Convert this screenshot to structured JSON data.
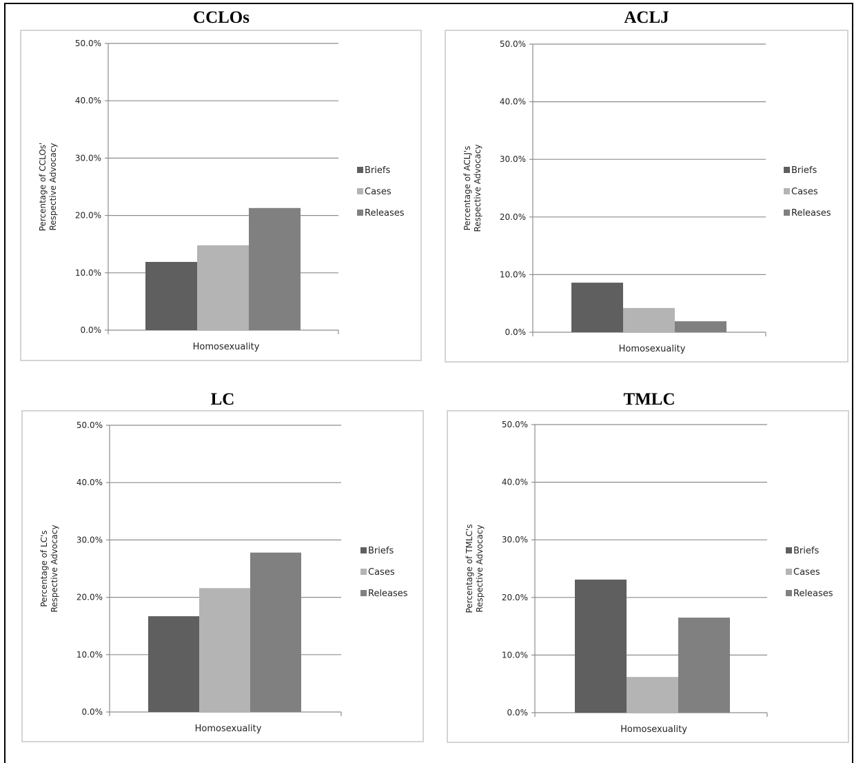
{
  "colors": {
    "briefs": "#5f5f5f",
    "cases": "#b4b4b4",
    "releases": "#808080",
    "grid": "#8c8c8c"
  },
  "panels": [
    {
      "title": "CCLOs",
      "ylabel_line1": "Percentage of CCLOs'",
      "ylabel_line2": "Respective Advocacy"
    },
    {
      "title": "ACLJ",
      "ylabel_line1": "Percentage of ACLJ's",
      "ylabel_line2": "Respective Advocacy"
    },
    {
      "title": "LC",
      "ylabel_line1": "Percentage of LC's",
      "ylabel_line2": "Respective Advocacy"
    },
    {
      "title": "TMLC",
      "ylabel_line1": "Percentage of TMLC's",
      "ylabel_line2": "Respective Advocacy"
    }
  ],
  "chart_data": [
    {
      "type": "bar",
      "title": "CCLOs",
      "categories": [
        "Homosexuality"
      ],
      "series": [
        {
          "name": "Briefs",
          "values": [
            11.9
          ]
        },
        {
          "name": "Cases",
          "values": [
            14.8
          ]
        },
        {
          "name": "Releases",
          "values": [
            21.3
          ]
        }
      ],
      "ylabel": "Percentage of CCLOs' Respective Advocacy",
      "ylim": [
        0,
        50
      ],
      "yticks": [
        "0.0%",
        "10.0%",
        "20.0%",
        "30.0%",
        "40.0%",
        "50.0%"
      ],
      "grid": true,
      "legend": "right"
    },
    {
      "type": "bar",
      "title": "ACLJ",
      "categories": [
        "Homosexuality"
      ],
      "series": [
        {
          "name": "Briefs",
          "values": [
            8.6
          ]
        },
        {
          "name": "Cases",
          "values": [
            4.2
          ]
        },
        {
          "name": "Releases",
          "values": [
            1.9
          ]
        }
      ],
      "ylabel": "Percentage of ACLJ's Respective Advocacy",
      "ylim": [
        0,
        50
      ],
      "yticks": [
        "0.0%",
        "10.0%",
        "20.0%",
        "30.0%",
        "40.0%",
        "50.0%"
      ],
      "grid": true,
      "legend": "right"
    },
    {
      "type": "bar",
      "title": "LC",
      "categories": [
        "Homosexuality"
      ],
      "series": [
        {
          "name": "Briefs",
          "values": [
            16.7
          ]
        },
        {
          "name": "Cases",
          "values": [
            21.6
          ]
        },
        {
          "name": "Releases",
          "values": [
            27.8
          ]
        }
      ],
      "ylabel": "Percentage of LC's Respective Advocacy",
      "ylim": [
        0,
        50
      ],
      "yticks": [
        "0.0%",
        "10.0%",
        "20.0%",
        "30.0%",
        "40.0%",
        "50.0%"
      ],
      "grid": true,
      "legend": "right"
    },
    {
      "type": "bar",
      "title": "TMLC",
      "categories": [
        "Homosexuality"
      ],
      "series": [
        {
          "name": "Briefs",
          "values": [
            23.1
          ]
        },
        {
          "name": "Cases",
          "values": [
            6.2
          ]
        },
        {
          "name": "Releases",
          "values": [
            16.5
          ]
        }
      ],
      "ylabel": "Percentage of TMLC's Respective Advocacy",
      "ylim": [
        0,
        50
      ],
      "yticks": [
        "0.0%",
        "10.0%",
        "20.0%",
        "30.0%",
        "40.0%",
        "50.0%"
      ],
      "grid": true,
      "legend": "right"
    }
  ]
}
